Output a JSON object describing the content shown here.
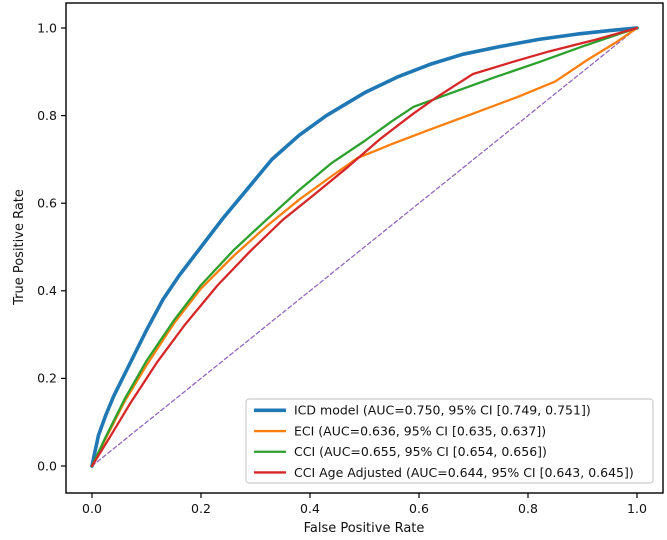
{
  "figure": {
    "kind": "roc-plot",
    "background": "#ffffff"
  },
  "chart_data": {
    "type": "line",
    "title": "",
    "xlabel": "False Positive Rate",
    "ylabel": "True Positive Rate",
    "xlim": [
      -0.05,
      1.05
    ],
    "ylim": [
      -0.06,
      1.06
    ],
    "xticks": [
      0.0,
      0.2,
      0.4,
      0.6,
      0.8,
      1.0
    ],
    "yticks": [
      0.0,
      0.2,
      0.4,
      0.6,
      0.8,
      1.0
    ],
    "grid": false,
    "legend_position": "lower right",
    "series": [
      {
        "key": "icd-model",
        "name": "ICD model",
        "label": "ICD model (AUC=0.750, 95% CI [0.749, 0.751])",
        "auc": 0.75,
        "ci": [
          0.749,
          0.751
        ],
        "color": "#1f77b4",
        "line_width": 3.6,
        "points": [
          [
            0,
            0
          ],
          [
            0.005,
            0.03
          ],
          [
            0.012,
            0.07
          ],
          [
            0.025,
            0.115
          ],
          [
            0.04,
            0.16
          ],
          [
            0.06,
            0.21
          ],
          [
            0.08,
            0.26
          ],
          [
            0.1,
            0.31
          ],
          [
            0.13,
            0.38
          ],
          [
            0.16,
            0.435
          ],
          [
            0.2,
            0.5
          ],
          [
            0.24,
            0.565
          ],
          [
            0.28,
            0.625
          ],
          [
            0.33,
            0.7
          ],
          [
            0.38,
            0.755
          ],
          [
            0.43,
            0.8
          ],
          [
            0.5,
            0.852
          ],
          [
            0.56,
            0.888
          ],
          [
            0.62,
            0.917
          ],
          [
            0.68,
            0.94
          ],
          [
            0.75,
            0.958
          ],
          [
            0.82,
            0.974
          ],
          [
            0.89,
            0.986
          ],
          [
            0.95,
            0.994
          ],
          [
            1,
            1
          ]
        ]
      },
      {
        "key": "eci",
        "name": "ECI",
        "label": "ECI (AUC=0.636, 95% CI [0.635, 0.637])",
        "auc": 0.636,
        "ci": [
          0.635,
          0.637
        ],
        "color": "#ff7f0e",
        "line_width": 2.3,
        "points": [
          [
            0,
            0
          ],
          [
            0.025,
            0.062
          ],
          [
            0.06,
            0.148
          ],
          [
            0.1,
            0.23
          ],
          [
            0.15,
            0.325
          ],
          [
            0.2,
            0.405
          ],
          [
            0.26,
            0.48
          ],
          [
            0.32,
            0.547
          ],
          [
            0.38,
            0.608
          ],
          [
            0.44,
            0.662
          ],
          [
            0.487,
            0.703
          ],
          [
            0.55,
            0.735
          ],
          [
            0.62,
            0.768
          ],
          [
            0.7,
            0.805
          ],
          [
            0.78,
            0.842
          ],
          [
            0.85,
            0.878
          ],
          [
            0.91,
            0.928
          ],
          [
            0.96,
            0.966
          ],
          [
            1,
            1
          ]
        ]
      },
      {
        "key": "cci",
        "name": "CCI",
        "label": "CCI (AUC=0.655, 95% CI [0.654, 0.656])",
        "auc": 0.655,
        "ci": [
          0.654,
          0.656
        ],
        "color": "#2ca02c",
        "line_width": 2.3,
        "points": [
          [
            0,
            0
          ],
          [
            0.025,
            0.066
          ],
          [
            0.06,
            0.153
          ],
          [
            0.1,
            0.24
          ],
          [
            0.15,
            0.332
          ],
          [
            0.2,
            0.413
          ],
          [
            0.26,
            0.493
          ],
          [
            0.32,
            0.562
          ],
          [
            0.38,
            0.63
          ],
          [
            0.44,
            0.692
          ],
          [
            0.5,
            0.742
          ],
          [
            0.55,
            0.787
          ],
          [
            0.59,
            0.82
          ],
          [
            0.66,
            0.852
          ],
          [
            0.74,
            0.888
          ],
          [
            0.82,
            0.922
          ],
          [
            0.9,
            0.958
          ],
          [
            1,
            1
          ]
        ]
      },
      {
        "key": "cci-age-adjusted",
        "name": "CCI Age Adjusted",
        "label": "CCI Age Adjusted (AUC=0.644, 95% CI [0.643, 0.645])",
        "auc": 0.644,
        "ci": [
          0.643,
          0.645
        ],
        "color": "#d62728",
        "line_width": 2.3,
        "points": [
          [
            0,
            0
          ],
          [
            0.03,
            0.06
          ],
          [
            0.07,
            0.143
          ],
          [
            0.12,
            0.238
          ],
          [
            0.17,
            0.322
          ],
          [
            0.23,
            0.412
          ],
          [
            0.29,
            0.49
          ],
          [
            0.35,
            0.562
          ],
          [
            0.41,
            0.622
          ],
          [
            0.47,
            0.683
          ],
          [
            0.53,
            0.748
          ],
          [
            0.59,
            0.805
          ],
          [
            0.63,
            0.84
          ],
          [
            0.665,
            0.868
          ],
          [
            0.699,
            0.895
          ],
          [
            0.77,
            0.922
          ],
          [
            0.84,
            0.947
          ],
          [
            0.92,
            0.972
          ],
          [
            1,
            1
          ]
        ]
      }
    ],
    "reference_line": {
      "key": "chance-diagonal",
      "name": "chance diagonal",
      "color": "#9467bd",
      "line_width": 1.3,
      "dash": "4 2.8",
      "points": [
        [
          0,
          0
        ],
        [
          1,
          1
        ]
      ]
    }
  }
}
